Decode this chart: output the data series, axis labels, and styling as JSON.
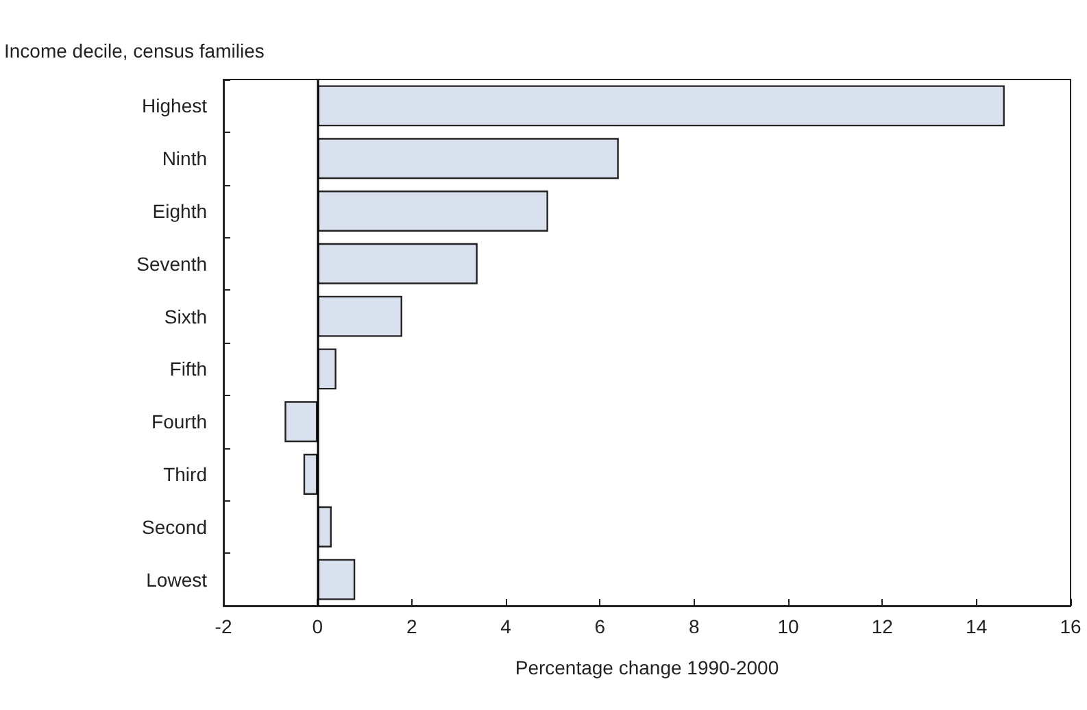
{
  "chart_data": {
    "type": "bar",
    "orientation": "horizontal",
    "ylabel": "Income decile, census families",
    "xlabel": "Percentage change 1990-2000",
    "categories": [
      "Highest",
      "Ninth",
      "Eighth",
      "Seventh",
      "Sixth",
      "Fifth",
      "Fourth",
      "Third",
      "Second",
      "Lowest"
    ],
    "values": [
      14.6,
      6.4,
      4.9,
      3.4,
      1.8,
      0.4,
      -0.7,
      -0.3,
      0.3,
      0.8
    ],
    "color": "#d9e1ee",
    "xlim": [
      -2,
      16
    ],
    "xticks": [
      -2,
      0,
      2,
      4,
      6,
      8,
      10,
      12,
      14,
      16
    ],
    "ref_lines": [
      {
        "axis": "x",
        "value": 0,
        "color": "#000000"
      }
    ],
    "grid": false
  }
}
